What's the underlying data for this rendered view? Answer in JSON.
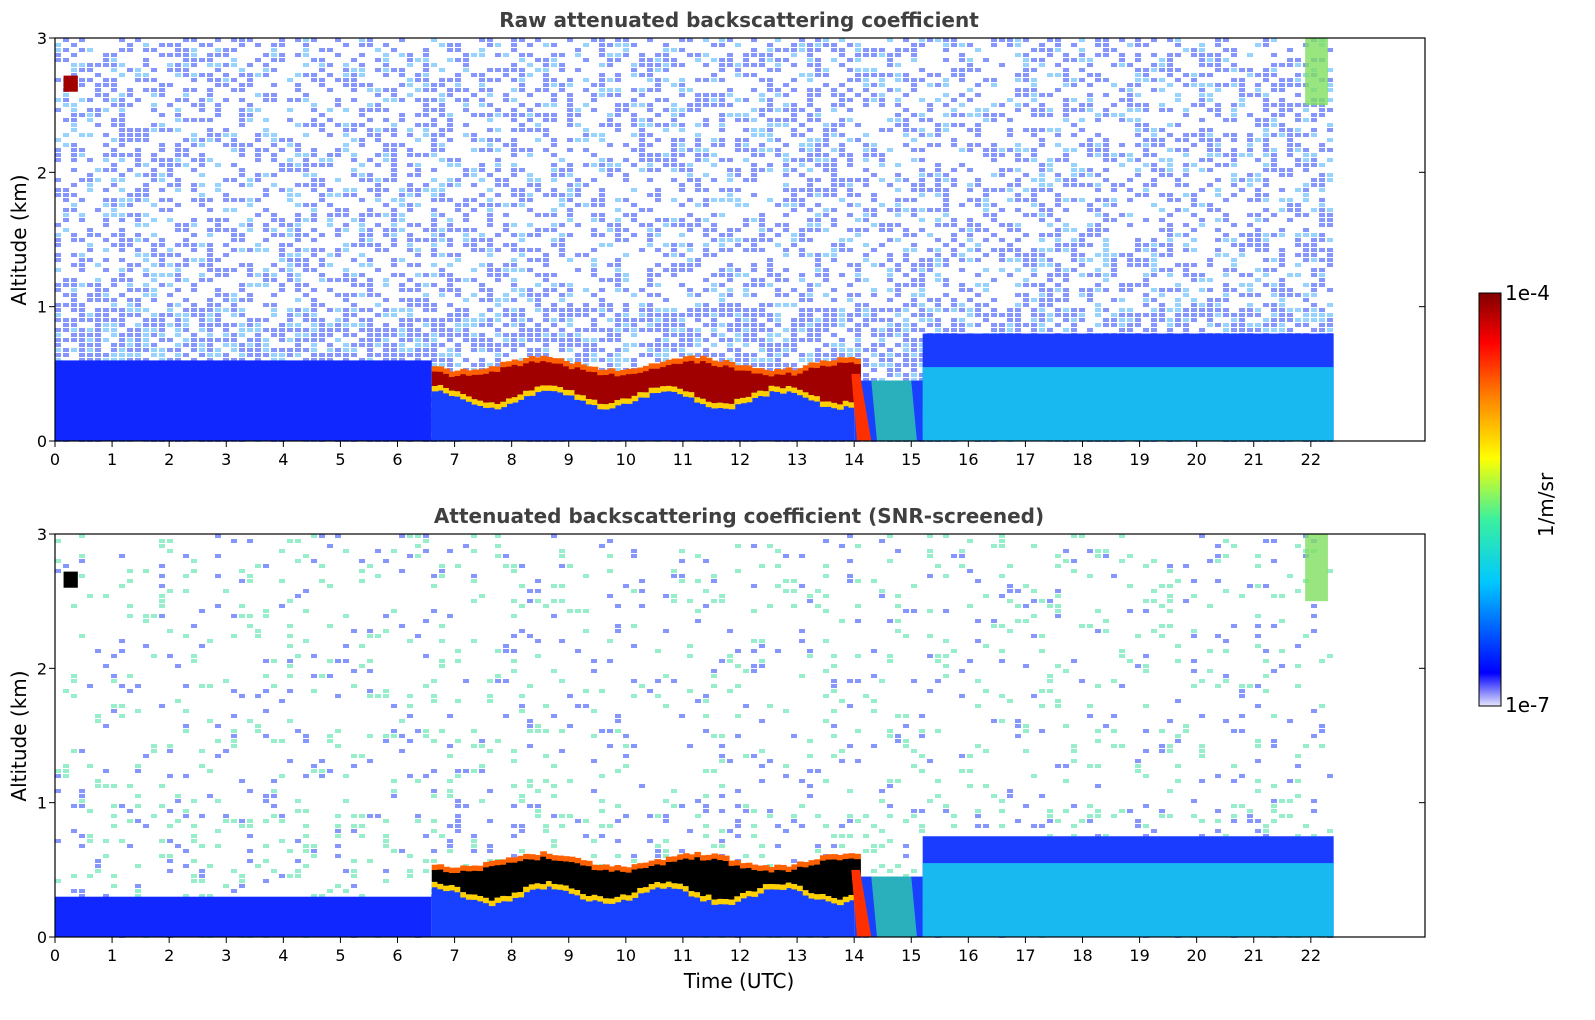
{
  "figure": {
    "panels": [
      {
        "title": "Raw attenuated backscattering coefficient",
        "ylabel": "Altitude (km)",
        "xlabel": ""
      },
      {
        "title": "Attenuated backscattering coefficient (SNR-screened)",
        "ylabel": "Altitude (km)",
        "xlabel": "Time (UTC)"
      }
    ],
    "colorbar": {
      "label": "1/m/sr",
      "max_label": "1e-4",
      "min_label": "1e-7"
    }
  },
  "chart_data": [
    {
      "type": "heatmap",
      "title": "Raw attenuated backscattering coefficient",
      "xlabel": "",
      "ylabel": "Altitude (km)",
      "xlim": [
        0,
        24
      ],
      "ylim": [
        0,
        3
      ],
      "x_ticks": [
        "0",
        "1",
        "2",
        "3",
        "4",
        "5",
        "6",
        "7",
        "8",
        "9",
        "10",
        "11",
        "12",
        "13",
        "14",
        "15",
        "16",
        "17",
        "18",
        "19",
        "20",
        "21",
        "22"
      ],
      "y_ticks": [
        "0",
        "1",
        "2",
        "3"
      ],
      "data_extent_hours": [
        0,
        22.4
      ],
      "features": [
        {
          "name": "boundary layer",
          "time": [
            0,
            22.4
          ],
          "altitude_top_km": [
            0.55,
            0.8
          ]
        },
        {
          "name": "cloud layer",
          "time": [
            6.6,
            14.0
          ],
          "altitude_km": [
            0.35,
            0.6
          ],
          "value": "1e-4"
        },
        {
          "name": "descending cloud",
          "time": [
            14.0,
            14.2
          ],
          "altitude_km": [
            0.0,
            0.5
          ]
        },
        {
          "name": "isolated cloud",
          "time": [
            0.2,
            0.4
          ],
          "altitude_km": [
            2.6,
            2.7
          ]
        }
      ]
    },
    {
      "type": "heatmap",
      "title": "Attenuated backscattering coefficient (SNR-screened)",
      "xlabel": "Time (UTC)",
      "ylabel": "Altitude (km)",
      "xlim": [
        0,
        24
      ],
      "ylim": [
        0,
        3
      ],
      "x_ticks": [
        "0",
        "1",
        "2",
        "3",
        "4",
        "5",
        "6",
        "7",
        "8",
        "9",
        "10",
        "11",
        "12",
        "13",
        "14",
        "15",
        "16",
        "17",
        "18",
        "19",
        "20",
        "21",
        "22"
      ],
      "y_ticks": [
        "0",
        "1",
        "2",
        "3"
      ],
      "data_extent_hours": [
        0,
        22.4
      ],
      "features": [
        {
          "name": "boundary layer",
          "time": [
            0,
            22.4
          ],
          "altitude_top_km": [
            0.25,
            0.6
          ]
        },
        {
          "name": "cloud layer (saturated)",
          "time": [
            6.6,
            14.0
          ],
          "altitude_km": [
            0.35,
            0.6
          ]
        },
        {
          "name": "isolated cloud",
          "time": [
            0.2,
            0.4
          ],
          "altitude_km": [
            2.6,
            2.7
          ]
        }
      ]
    }
  ],
  "colorscale": {
    "stops": [
      "#e6e6fa",
      "#0000ff",
      "#00c8ff",
      "#39f0a0",
      "#ffff00",
      "#ff8000",
      "#ff0000",
      "#800000"
    ],
    "saturated": "#000000",
    "range": [
      "1e-7",
      "1e-4"
    ]
  }
}
